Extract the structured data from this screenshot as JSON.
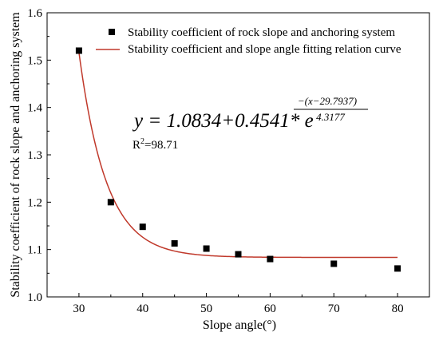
{
  "chart_data": {
    "type": "scatter",
    "xlabel": "Slope angle(°)",
    "ylabel": "Stability coefficient of rock slope and anchoring system",
    "xlim": [
      25,
      85
    ],
    "ylim": [
      1.0,
      1.6
    ],
    "xticks": [
      30,
      40,
      50,
      60,
      70,
      80
    ],
    "yticks": [
      1.0,
      1.1,
      1.2,
      1.3,
      1.4,
      1.5,
      1.6
    ],
    "xtick_labels": [
      "30",
      "40",
      "50",
      "60",
      "70",
      "80"
    ],
    "ytick_labels": [
      "1.0",
      "1.1",
      "1.2",
      "1.3",
      "1.4",
      "1.5",
      "1.6"
    ],
    "grid": false,
    "legend_position": "top-right",
    "series": [
      {
        "name": "Stability coefficient of rock slope and anchoring system",
        "kind": "scatter",
        "marker": "square",
        "color": "#000000",
        "x": [
          30,
          35,
          40,
          45,
          50,
          55,
          60,
          70,
          80
        ],
        "y": [
          1.52,
          1.2,
          1.148,
          1.113,
          1.102,
          1.09,
          1.08,
          1.07,
          1.06
        ]
      },
      {
        "name": "Stability coefficient and slope angle fitting relation curve",
        "kind": "fit",
        "color": "#c0392b",
        "model": {
          "a": 1.0834,
          "b": 0.4541,
          "c": 29.7937,
          "d": 4.3177
        },
        "x_range": [
          30,
          80
        ]
      }
    ],
    "annotations": {
      "equation_main": "y = 1.0834+0.4541* e",
      "equation_exp_numerator": "−(x−29.7937)",
      "equation_exp_denominator": "4.3177",
      "r2_label": "R",
      "r2_sup": "2",
      "r2_value": "=98.71"
    }
  }
}
